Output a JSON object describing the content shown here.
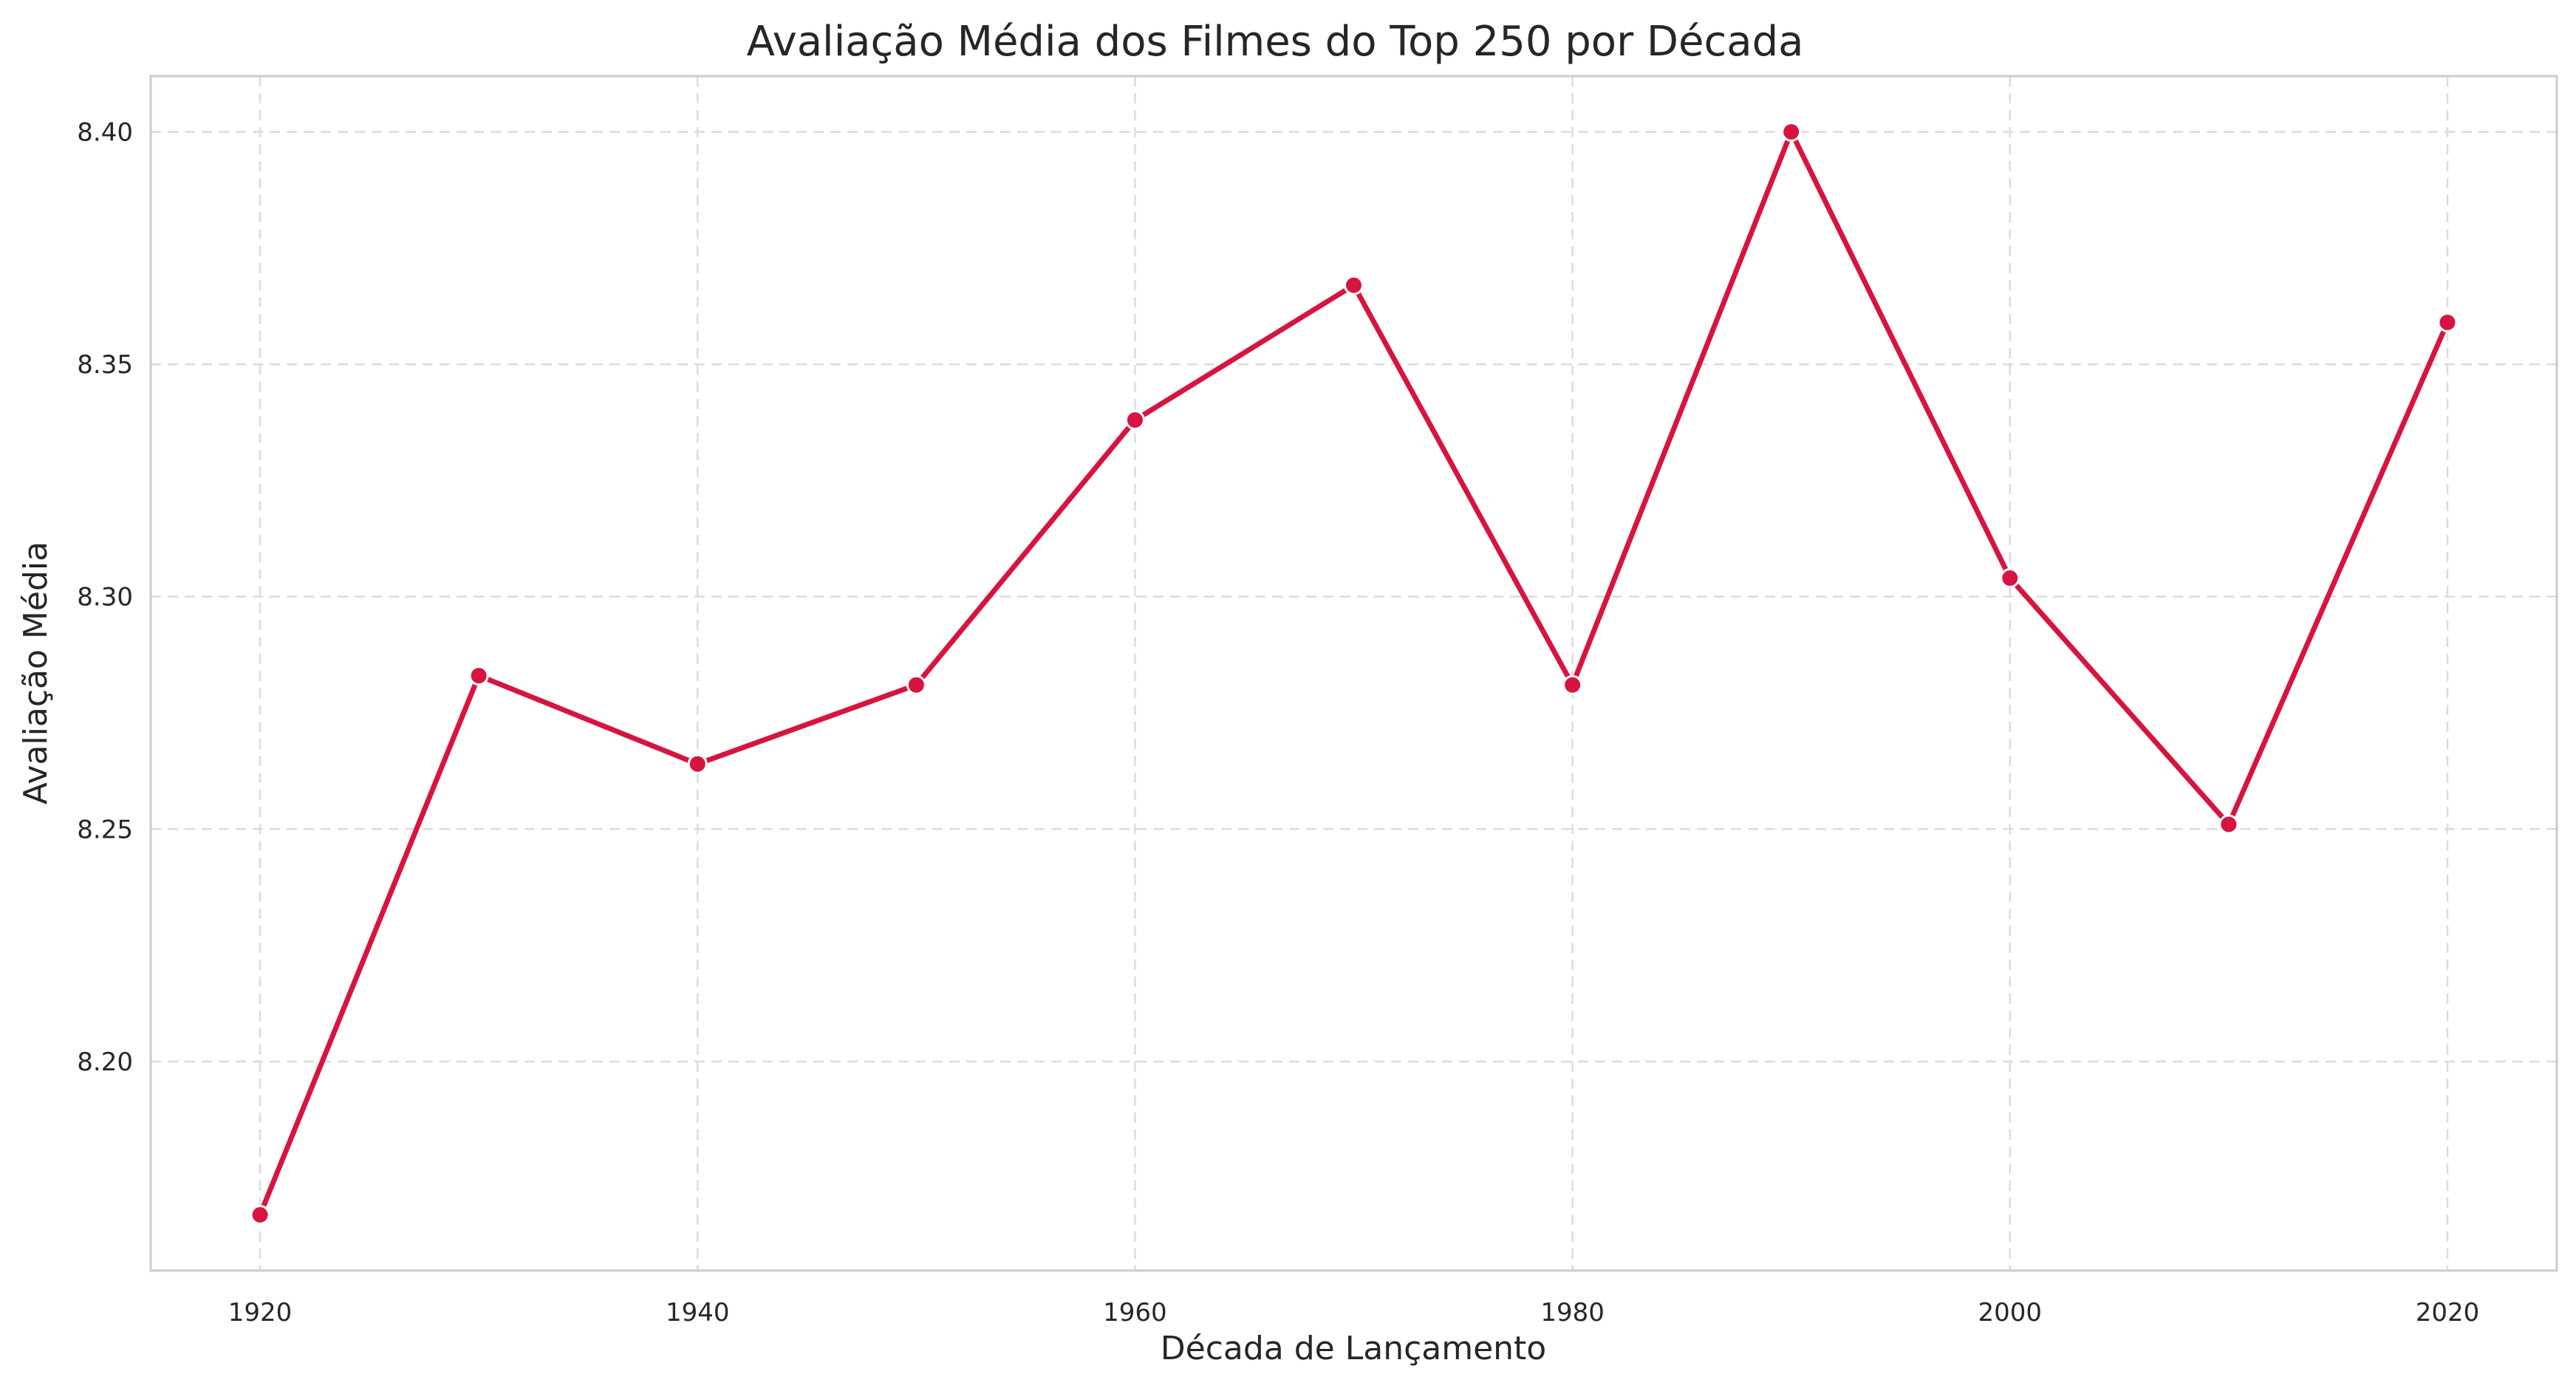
{
  "chart_data": {
    "type": "line",
    "title": "Avaliação Média dos Filmes do Top 250 por Década",
    "xlabel": "Década de Lançamento",
    "ylabel": "Avaliação Média",
    "x": [
      1920,
      1930,
      1940,
      1950,
      1960,
      1970,
      1980,
      1990,
      2000,
      2010,
      2020
    ],
    "series": [
      {
        "values": [
          8.167,
          8.283,
          8.264,
          8.281,
          8.338,
          8.367,
          8.281,
          8.4,
          8.304,
          8.251,
          8.359
        ]
      }
    ],
    "xlim": [
      1915,
      2025
    ],
    "ylim": [
      8.155,
      8.412
    ],
    "xticks": [
      1920,
      1940,
      1960,
      1980,
      2000,
      2020
    ],
    "yticks": [
      8.2,
      8.25,
      8.3,
      8.35,
      8.4
    ],
    "ytick_labels": [
      "8.20",
      "8.25",
      "8.30",
      "8.35",
      "8.40"
    ],
    "grid": true,
    "grid_style": "dashed",
    "legend": false,
    "colors": {
      "line": "#d7143f",
      "marker": "#d7143f",
      "marker_edge": "#ffffff",
      "grid": "#dcdcdc",
      "spine": "#cccccc",
      "text": "#262626"
    }
  }
}
